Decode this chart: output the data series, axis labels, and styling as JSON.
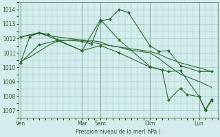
{
  "background_color": "#d4ecec",
  "grid_color": "#9dc4c4",
  "line_color": "#2d6b2d",
  "marker_color": "#2d6b2d",
  "xlabel": "Pression niveau de la mer( hPa )",
  "ylim": [
    1006.5,
    1014.5
  ],
  "yticks": [
    1007,
    1008,
    1009,
    1010,
    1011,
    1012,
    1013,
    1014
  ],
  "x_day_labels": [
    "Ven",
    "Mar",
    "Sam",
    "Dim",
    "Lun"
  ],
  "x_day_positions": [
    0,
    10,
    13,
    21,
    29
  ],
  "series": [
    {
      "x": [
        0,
        1.5,
        3,
        4.5,
        6,
        10,
        11.5,
        13,
        14.5,
        16,
        17.5,
        21,
        22.5,
        24,
        26,
        29,
        31
      ],
      "y": [
        1010.3,
        1012.1,
        1012.4,
        1012.3,
        1011.9,
        1011.8,
        1011.6,
        1013.2,
        1013.35,
        1014.0,
        1013.8,
        1011.5,
        1011.1,
        1011.15,
        1010.1,
        1009.7,
        1009.7
      ],
      "with_markers": true
    },
    {
      "x": [
        0,
        1.5,
        3,
        4.5,
        6,
        8,
        10,
        11.5,
        13,
        14.5,
        16,
        17.5,
        21,
        22.5,
        24,
        26,
        29,
        31
      ],
      "y": [
        1012.1,
        1012.2,
        1012.35,
        1012.2,
        1012.1,
        1012.0,
        1011.85,
        1011.75,
        1011.6,
        1011.5,
        1011.4,
        1011.3,
        1011.1,
        1010.9,
        1010.6,
        1010.3,
        1009.95,
        1009.7
      ],
      "with_markers": false
    },
    {
      "x": [
        0,
        1.5,
        3,
        4.5,
        6,
        8,
        10,
        11.5,
        13,
        14.5,
        16,
        17.5,
        21,
        22.5,
        24,
        26,
        29,
        31
      ],
      "y": [
        1010.4,
        1010.7,
        1011.1,
        1011.5,
        1011.8,
        1011.9,
        1011.9,
        1011.85,
        1011.75,
        1011.5,
        1011.4,
        1011.2,
        1011.0,
        1010.6,
        1010.1,
        1009.5,
        1009.0,
        1008.6
      ],
      "with_markers": false
    },
    {
      "x": [
        0,
        3,
        6,
        10,
        13,
        16,
        21,
        24,
        26,
        29,
        30,
        31
      ],
      "y": [
        1012.1,
        1012.4,
        1011.9,
        1011.15,
        1011.5,
        1011.0,
        1010.0,
        1009.7,
        1009.75,
        1007.95,
        1007.05,
        1007.75
      ],
      "with_markers": true
    },
    {
      "x": [
        0,
        3,
        6,
        10,
        13,
        16,
        21,
        23,
        24,
        26,
        27,
        29,
        30,
        31
      ],
      "y": [
        1010.3,
        1011.55,
        1011.85,
        1011.15,
        1013.3,
        1011.9,
        1010.05,
        1009.8,
        1007.7,
        1008.55,
        1008.1,
        1007.95,
        1007.0,
        1007.65
      ],
      "with_markers": true
    }
  ],
  "xlim": [
    -0.3,
    32
  ],
  "figsize": [
    3.2,
    2.0
  ],
  "dpi": 100
}
